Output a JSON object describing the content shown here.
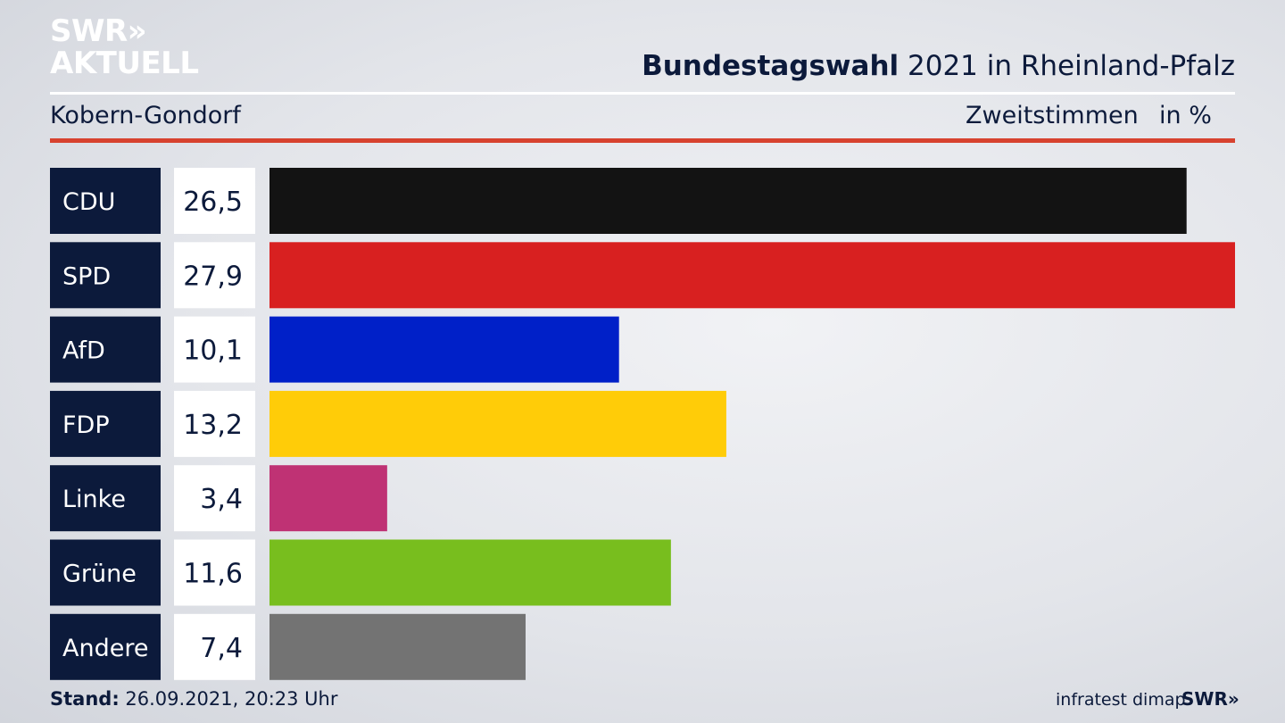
{
  "header": {
    "logo_line1": "SWR»",
    "logo_line2": "AKTUELL",
    "title_bold": "Bundestagswahl",
    "title_rest": " 2021 in Rheinland-Pfalz",
    "region": "Kobern-Gondorf",
    "metric": "Zweitstimmen",
    "unit": "in %"
  },
  "chart_data": {
    "type": "bar",
    "orientation": "horizontal",
    "categories": [
      "CDU",
      "SPD",
      "AfD",
      "FDP",
      "Linke",
      "Grüne",
      "Andere"
    ],
    "value_labels": [
      "26,5",
      "27,9",
      "10,1",
      "13,2",
      "3,4",
      "11,6",
      "7,4"
    ],
    "values": [
      26.5,
      27.9,
      10.1,
      13.2,
      3.4,
      11.6,
      7.4
    ],
    "colors": [
      "#131313",
      "#d82020",
      "#0020c8",
      "#ffcc08",
      "#bf3274",
      "#78be1e",
      "#737373"
    ],
    "xlim": [
      0,
      27.9
    ],
    "grid": false,
    "legend": "none"
  },
  "footer": {
    "stand_label": "Stand:",
    "stand_value": " 26.09.2021, 20:23 Uhr",
    "source": "infratest dimap",
    "brand": "SWR»"
  },
  "colors": {
    "label_bg": "#0c1a3b",
    "value_bg": "#ffffff",
    "accent": "#d7422f"
  }
}
